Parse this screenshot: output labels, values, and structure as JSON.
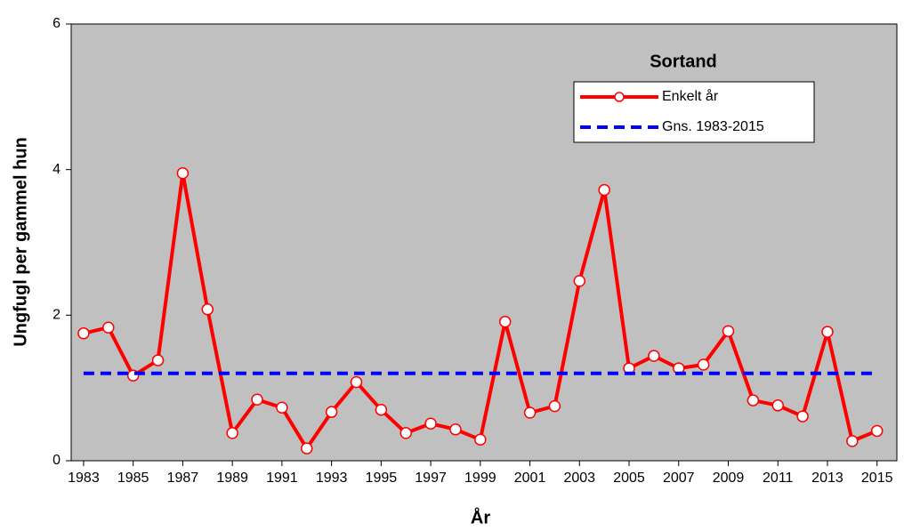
{
  "chart_data": {
    "type": "line",
    "title": "Sortand",
    "x_label": "År",
    "y_label": "Ungfugl per gammel hun",
    "x": [
      1983,
      1984,
      1985,
      1986,
      1987,
      1988,
      1989,
      1990,
      1991,
      1992,
      1993,
      1994,
      1995,
      1996,
      1997,
      1998,
      1999,
      2000,
      2001,
      2002,
      2003,
      2004,
      2005,
      2006,
      2007,
      2008,
      2009,
      2010,
      2011,
      2012,
      2013,
      2014,
      2015
    ],
    "series": [
      {
        "name": "Enkelt år",
        "color": "#ff0000",
        "style": "solid",
        "markers": true,
        "values": [
          1.75,
          1.83,
          1.17,
          1.38,
          3.95,
          2.08,
          0.38,
          0.84,
          0.73,
          0.17,
          0.67,
          1.08,
          0.7,
          0.38,
          0.51,
          0.43,
          0.29,
          1.91,
          0.66,
          0.75,
          2.47,
          3.72,
          1.27,
          1.44,
          1.27,
          1.32,
          1.78,
          0.83,
          0.76,
          0.61,
          1.77,
          0.27,
          0.41
        ]
      },
      {
        "name": "Gns. 1983-2015",
        "color": "#0000ff",
        "style": "dashed",
        "markers": false,
        "values": [
          1.2,
          1.2,
          1.2,
          1.2,
          1.2,
          1.2,
          1.2,
          1.2,
          1.2,
          1.2,
          1.2,
          1.2,
          1.2,
          1.2,
          1.2,
          1.2,
          1.2,
          1.2,
          1.2,
          1.2,
          1.2,
          1.2,
          1.2,
          1.2,
          1.2,
          1.2,
          1.2,
          1.2,
          1.2,
          1.2,
          1.2,
          1.2,
          1.2
        ]
      }
    ],
    "xlim": [
      1982.5,
      2015.8
    ],
    "xticks": [
      1983,
      1985,
      1987,
      1989,
      1991,
      1993,
      1995,
      1997,
      1999,
      2001,
      2003,
      2005,
      2007,
      2009,
      2011,
      2013,
      2015
    ],
    "ylim": [
      0,
      6
    ],
    "yticks": [
      0,
      2,
      4,
      6
    ],
    "background": "#c0c0c0",
    "grid": false
  }
}
